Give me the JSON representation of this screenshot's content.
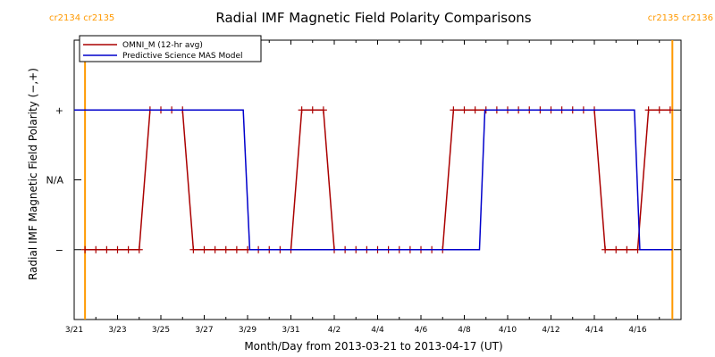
{
  "chart_data": {
    "type": "line",
    "title": "Radial IMF Magnetic Field Polarity Comparisons",
    "xlabel": "Month/Day from 2013-03-21 to 2013-04-17 (UT)",
    "ylabel": "Radial IMF Magnetic Field Polarity (−,+)",
    "x_unit": "days since 2013-03-21 00:00 UT",
    "xlim": [
      0,
      28
    ],
    "ylim": [
      -2,
      2
    ],
    "x_ticks": [
      {
        "x": 0,
        "label": "3/21"
      },
      {
        "x": 2,
        "label": "3/23"
      },
      {
        "x": 4,
        "label": "3/25"
      },
      {
        "x": 6,
        "label": "3/27"
      },
      {
        "x": 8,
        "label": "3/29"
      },
      {
        "x": 10,
        "label": "3/31"
      },
      {
        "x": 12,
        "label": "4/2"
      },
      {
        "x": 14,
        "label": "4/4"
      },
      {
        "x": 16,
        "label": "4/6"
      },
      {
        "x": 18,
        "label": "4/8"
      },
      {
        "x": 20,
        "label": "4/10"
      },
      {
        "x": 22,
        "label": "4/12"
      },
      {
        "x": 24,
        "label": "4/14"
      },
      {
        "x": 26,
        "label": "4/16"
      }
    ],
    "y_ticks": [
      {
        "y": 1,
        "label": "+"
      },
      {
        "y": 0,
        "label": "N/A"
      },
      {
        "y": -1,
        "label": "−"
      }
    ],
    "carrington_markers": [
      {
        "x": 0.5,
        "label": "cr2134 cr2135"
      },
      {
        "x": 27.6,
        "label": "cr2135 cr2136"
      }
    ],
    "legend": "top-left",
    "series": [
      {
        "name": "OMNI_M (12-hr avg)",
        "color": "#aa0000",
        "markers": true,
        "x": [
          0.5,
          1.0,
          1.5,
          2.0,
          2.5,
          3.0,
          3.5,
          4.0,
          4.5,
          5.0,
          5.5,
          6.0,
          6.5,
          7.0,
          7.5,
          8.0,
          8.5,
          9.0,
          9.5,
          10.0,
          10.5,
          11.0,
          11.5,
          12.0,
          12.5,
          13.0,
          13.5,
          14.0,
          14.5,
          15.0,
          15.5,
          16.0,
          16.5,
          17.0,
          17.5,
          18.0,
          18.5,
          19.0,
          19.5,
          20.0,
          20.5,
          21.0,
          21.5,
          22.0,
          22.5,
          23.0,
          23.5,
          24.0,
          24.5,
          25.0,
          25.5,
          26.0,
          26.5,
          27.0,
          27.5
        ],
        "y": [
          -1,
          -1,
          -1,
          -1,
          -1,
          -1,
          1,
          1,
          1,
          1,
          -1,
          -1,
          -1,
          -1,
          -1,
          -1,
          -1,
          -1,
          -1,
          -1,
          1,
          1,
          1,
          -1,
          -1,
          -1,
          -1,
          -1,
          -1,
          -1,
          -1,
          -1,
          -1,
          -1,
          1,
          1,
          1,
          1,
          1,
          1,
          1,
          1,
          1,
          1,
          1,
          1,
          1,
          1,
          -1,
          -1,
          -1,
          -1,
          1,
          1,
          1
        ]
      },
      {
        "name": "Predictive Science MAS Model",
        "color": "#0000cc",
        "markers": false,
        "x": [
          0.0,
          7.8,
          8.1,
          18.7,
          18.95,
          25.85,
          26.1,
          27.6
        ],
        "y": [
          1,
          1,
          -1,
          -1,
          1,
          1,
          -1,
          -1
        ]
      }
    ]
  }
}
